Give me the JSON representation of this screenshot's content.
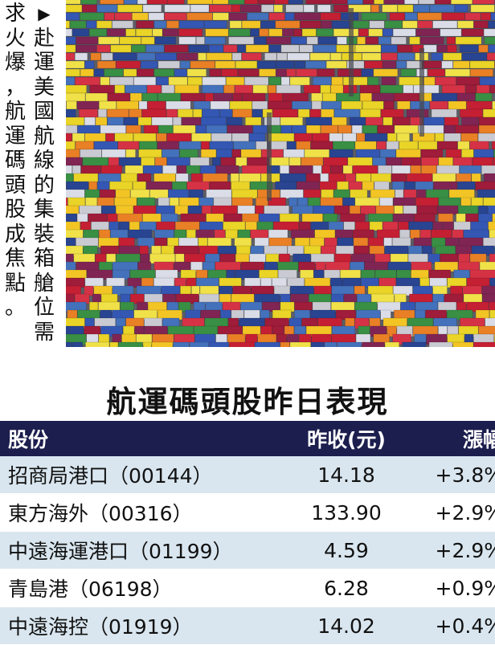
{
  "caption": {
    "arrow": "▶",
    "col1": [
      "赴",
      "運",
      "美",
      "國",
      "航",
      "線",
      "的",
      "集",
      "裝",
      "箱",
      "艙",
      "位",
      "需"
    ],
    "col2": [
      "求",
      "火",
      "爆",
      "，",
      "航",
      "運",
      "碼",
      "頭",
      "股",
      "成",
      "焦",
      "點",
      "。"
    ]
  },
  "title": "航運碼頭股昨日表現",
  "table": {
    "headers": {
      "name": "股份",
      "close": "昨收(元)",
      "change": "漲幅"
    },
    "rows": [
      {
        "name": "招商局港口（00144）",
        "close": "14.18",
        "change": "+3.8%"
      },
      {
        "name": "東方海外（00316）",
        "close": "133.90",
        "change": "+2.9%"
      },
      {
        "name": "中遠海運港口（01199）",
        "close": "4.59",
        "change": "+2.9%"
      },
      {
        "name": "青島港（06198）",
        "close": "6.28",
        "change": "+0.9%"
      },
      {
        "name": "中遠海控（01919）",
        "close": "14.02",
        "change": "+0.4%"
      }
    ]
  }
}
